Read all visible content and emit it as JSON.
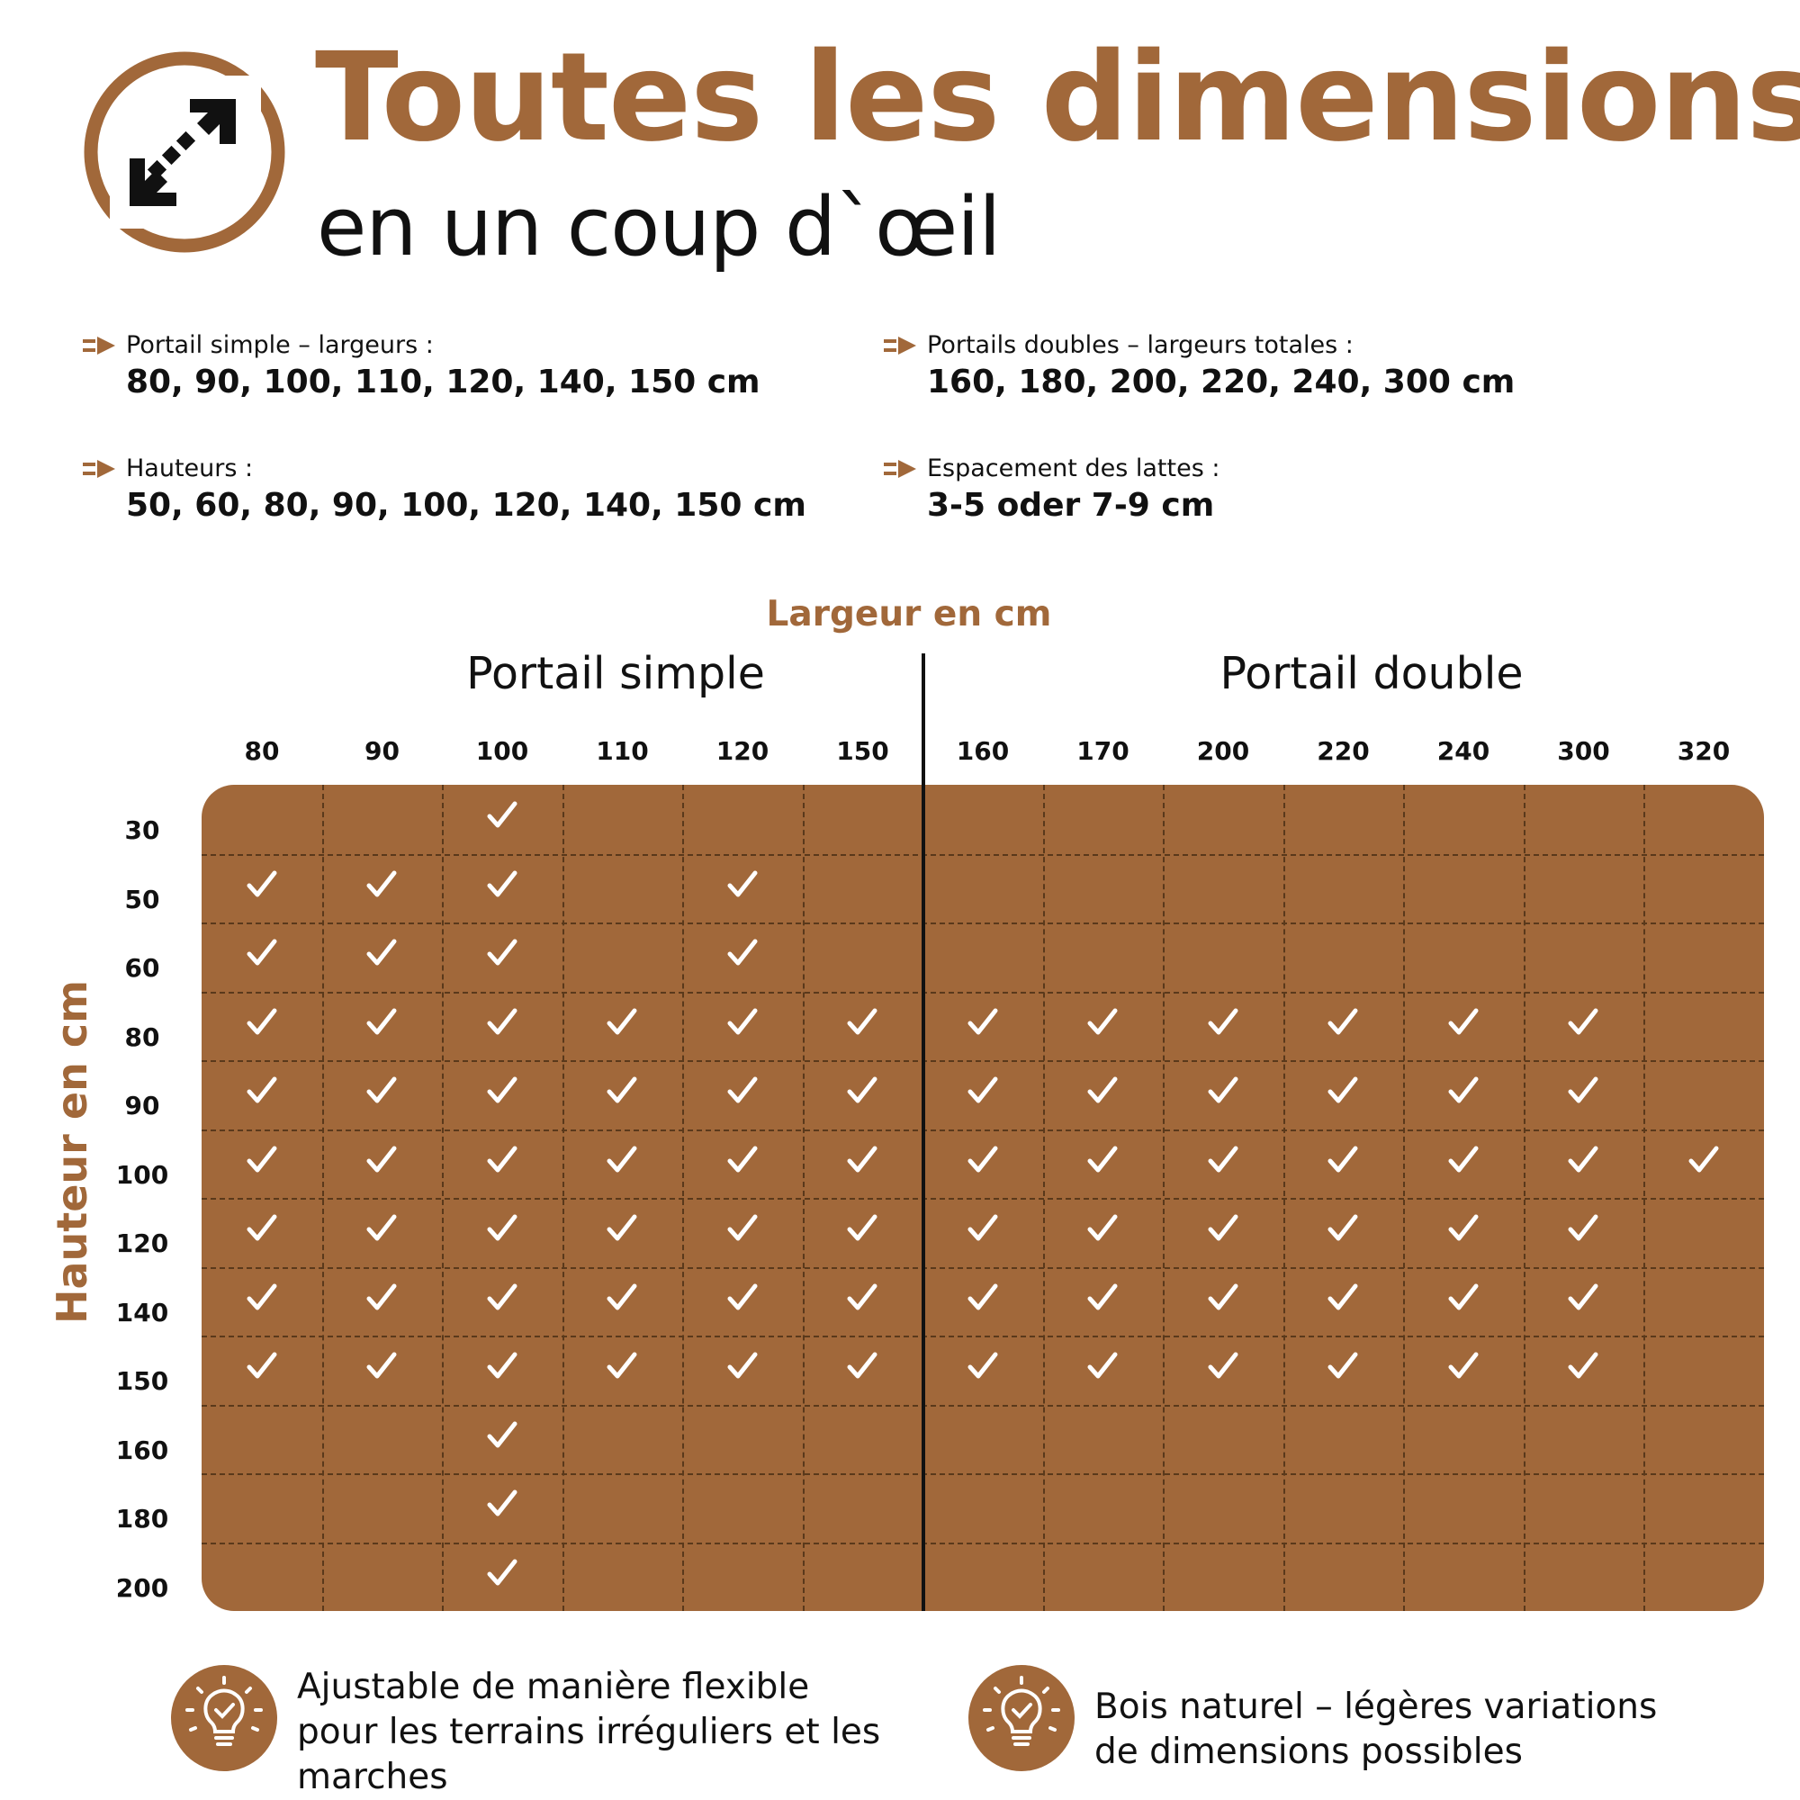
{
  "header": {
    "title": "Toutes les dimensions",
    "subtitle": "en un coup d`œil",
    "logo_icon": "resize-diagonal-arrows-icon"
  },
  "specs": [
    {
      "label": "Portail simple – largeurs :",
      "value": "80, 90, 100, 110, 120, 140, 150 cm",
      "icon": "arrow-right-icon"
    },
    {
      "label": "Portails doubles – largeurs totales :",
      "value": "160, 180, 200, 220, 240, 300 cm",
      "icon": "arrow-right-icon"
    },
    {
      "label": "Hauteurs :",
      "value": "50, 60, 80, 90, 100, 120, 140, 150 cm",
      "icon": "arrow-right-icon"
    },
    {
      "label": "Espacement des lattes :",
      "value": "3-5 oder 7-9 cm",
      "icon": "arrow-right-icon"
    }
  ],
  "table": {
    "width_axis_label": "Largeur en cm",
    "height_axis_label": "Hauteur en cm",
    "group_simple": "Portail simple",
    "group_double": "Portail double",
    "columns": [
      "80",
      "90",
      "100",
      "110",
      "120",
      "150",
      "160",
      "170",
      "200",
      "220",
      "240",
      "300",
      "320"
    ],
    "rows": [
      "30",
      "50",
      "60",
      "80",
      "90",
      "100",
      "120",
      "140",
      "150",
      "160",
      "180",
      "200"
    ],
    "available": [
      [
        0,
        0,
        1,
        0,
        0,
        0,
        0,
        0,
        0,
        0,
        0,
        0,
        0
      ],
      [
        1,
        1,
        1,
        0,
        1,
        0,
        0,
        0,
        0,
        0,
        0,
        0,
        0
      ],
      [
        1,
        1,
        1,
        0,
        1,
        0,
        0,
        0,
        0,
        0,
        0,
        0,
        0
      ],
      [
        1,
        1,
        1,
        1,
        1,
        1,
        1,
        1,
        1,
        1,
        1,
        1,
        0
      ],
      [
        1,
        1,
        1,
        1,
        1,
        1,
        1,
        1,
        1,
        1,
        1,
        1,
        0
      ],
      [
        1,
        1,
        1,
        1,
        1,
        1,
        1,
        1,
        1,
        1,
        1,
        1,
        1
      ],
      [
        1,
        1,
        1,
        1,
        1,
        1,
        1,
        1,
        1,
        1,
        1,
        1,
        0
      ],
      [
        1,
        1,
        1,
        1,
        1,
        1,
        1,
        1,
        1,
        1,
        1,
        1,
        0
      ],
      [
        1,
        1,
        1,
        1,
        1,
        1,
        1,
        1,
        1,
        1,
        1,
        1,
        0
      ],
      [
        0,
        0,
        1,
        0,
        0,
        0,
        0,
        0,
        0,
        0,
        0,
        0,
        0
      ],
      [
        0,
        0,
        1,
        0,
        0,
        0,
        0,
        0,
        0,
        0,
        0,
        0,
        0
      ],
      [
        0,
        0,
        1,
        0,
        0,
        0,
        0,
        0,
        0,
        0,
        0,
        0,
        0
      ]
    ]
  },
  "notes": [
    {
      "lines": [
        "Ajustable de manière flexible",
        "pour les terrains irréguliers et les",
        "marches"
      ],
      "icon": "lightbulb-check-icon"
    },
    {
      "lines": [
        "Bois naturel – légères variations",
        "de dimensions possibles"
      ],
      "icon": "lightbulb-check-icon"
    }
  ],
  "colors": {
    "accent": "#a1683a",
    "grid_lines": "#5a391b",
    "text": "#111111",
    "check": "#ffffff"
  }
}
